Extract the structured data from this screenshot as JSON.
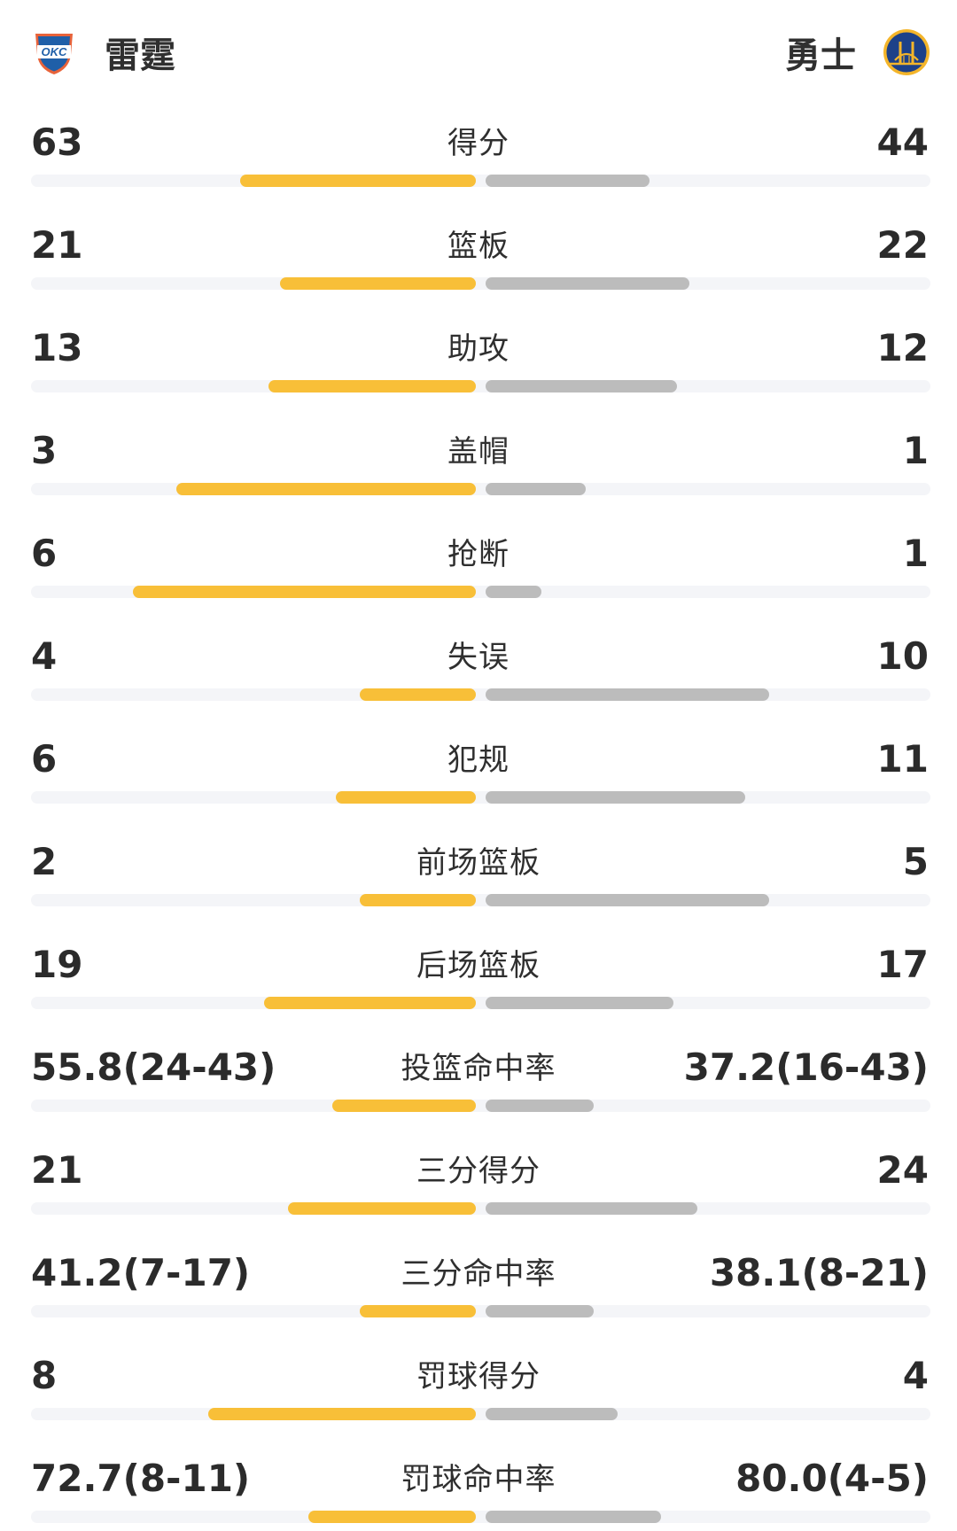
{
  "header": {
    "home_team": "雷霆",
    "away_team": "勇士",
    "home_logo_text": "OKC",
    "home_logo_icon": "okc-thunder-logo-icon",
    "away_logo_icon": "gsw-warriors-logo-icon"
  },
  "colors": {
    "home_bar": "#f8bf38",
    "away_bar": "#bcbcbc",
    "track": "#f4f5f8"
  },
  "stats": [
    {
      "label": "得分",
      "home": "63",
      "away": "44",
      "home_fill": 0.59,
      "away_fill": 0.41
    },
    {
      "label": "篮板",
      "home": "21",
      "away": "22",
      "home_fill": 0.49,
      "away_fill": 0.51
    },
    {
      "label": "助攻",
      "home": "13",
      "away": "12",
      "home_fill": 0.52,
      "away_fill": 0.48
    },
    {
      "label": "盖帽",
      "home": "3",
      "away": "1",
      "home_fill": 0.75,
      "away_fill": 0.25
    },
    {
      "label": "抢断",
      "home": "6",
      "away": "1",
      "home_fill": 0.86,
      "away_fill": 0.14
    },
    {
      "label": "失误",
      "home": "4",
      "away": "10",
      "home_fill": 0.29,
      "away_fill": 0.71
    },
    {
      "label": "犯规",
      "home": "6",
      "away": "11",
      "home_fill": 0.35,
      "away_fill": 0.65
    },
    {
      "label": "前场篮板",
      "home": "2",
      "away": "5",
      "home_fill": 0.29,
      "away_fill": 0.71
    },
    {
      "label": "后场篮板",
      "home": "19",
      "away": "17",
      "home_fill": 0.53,
      "away_fill": 0.47
    },
    {
      "label": "投篮命中率",
      "home": "55.8(24-43)",
      "away": "37.2(16-43)",
      "home_fill": 0.36,
      "away_fill": 0.27
    },
    {
      "label": "三分得分",
      "home": "21",
      "away": "24",
      "home_fill": 0.47,
      "away_fill": 0.53
    },
    {
      "label": "三分命中率",
      "home": "41.2(7-17)",
      "away": "38.1(8-21)",
      "home_fill": 0.29,
      "away_fill": 0.27
    },
    {
      "label": "罚球得分",
      "home": "8",
      "away": "4",
      "home_fill": 0.67,
      "away_fill": 0.33
    },
    {
      "label": "罚球命中率",
      "home": "72.7(8-11)",
      "away": "80.0(4-5)",
      "home_fill": 0.42,
      "away_fill": 0.44
    }
  ]
}
